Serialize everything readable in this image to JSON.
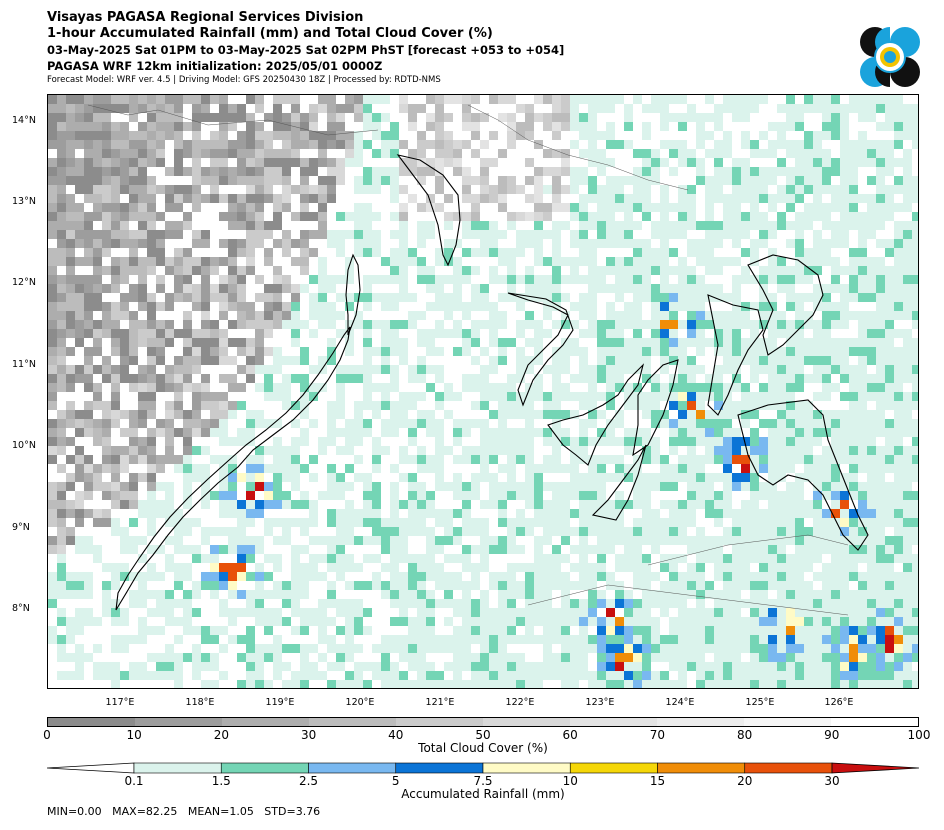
{
  "header": {
    "line1": "Visayas PAGASA Regional Services Division",
    "line2": "1-hour Accumulated Rainfall (mm) and Total Cloud Cover (%)",
    "line3": "03-May-2025 Sat 01PM to 03-May-2025 Sat 02PM PhST [forecast +053 to +054]",
    "line4": "PAGASA WRF 12km initialization: 2025/05/01 0000Z",
    "line5": "Forecast Model: WRF ver. 4.5 | Driving Model: GFS 20250430 18Z | Processed by: RDTD-NMS"
  },
  "map": {
    "lat_labels": [
      "14°N",
      "13°N",
      "12°N",
      "11°N",
      "10°N",
      "9°N",
      "8°N"
    ],
    "lon_labels": [
      "117°E",
      "118°E",
      "119°E",
      "120°E",
      "121°E",
      "122°E",
      "123°E",
      "124°E",
      "125°E",
      "126°E"
    ]
  },
  "cloud_cover": {
    "title": "Total Cloud Cover (%)",
    "ticks": [
      "0",
      "10",
      "20",
      "30",
      "40",
      "50",
      "60",
      "70",
      "80",
      "90",
      "100"
    ],
    "colors": [
      "#8c8c8c",
      "#9d9d9d",
      "#adadad",
      "#bcbcbc",
      "#cbcbcb",
      "#d8d8d8",
      "#e3e3e3",
      "#ececec",
      "#f5f5f5",
      "#ffffff"
    ]
  },
  "rainfall": {
    "title": "Accumulated Rainfall (mm)",
    "ticks": [
      "0.1",
      "1.5",
      "2.5",
      "5",
      "7.5",
      "10",
      "15",
      "20",
      "30"
    ],
    "colors": [
      "#ffffff",
      "#dbf3ec",
      "#74d5b5",
      "#79b8f0",
      "#0b74d6",
      "#fffbc6",
      "#f5d708",
      "#f08d08",
      "#e8510a",
      "#c80f0f"
    ]
  },
  "stats": {
    "text": "MIN=0.00   MAX=82.25   MEAN=1.05   STD=3.76"
  },
  "logo": {
    "colors": [
      "#111111",
      "#1aa3dc",
      "#f2c300"
    ]
  }
}
